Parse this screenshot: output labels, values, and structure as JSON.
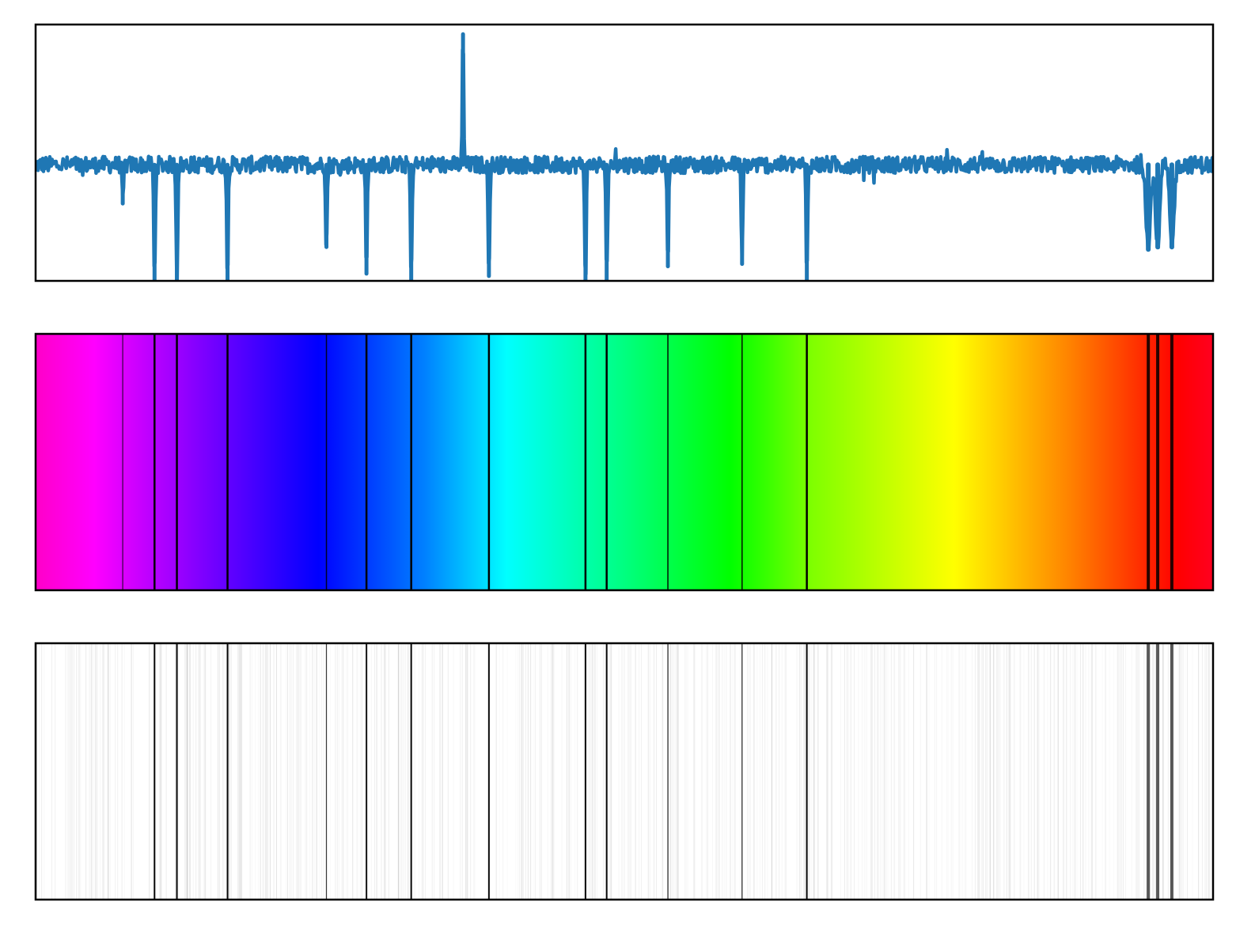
{
  "colors": {
    "line": "#1f77b4",
    "frame": "#000000",
    "background": "#ffffff",
    "rainbow": [
      "#ff00c8",
      "#ff00ff",
      "#8000ff",
      "#0000ff",
      "#0080ff",
      "#00ffff",
      "#00ff80",
      "#00ff00",
      "#80ff00",
      "#ffff00",
      "#ff8000",
      "#ff0000",
      "#ff0020"
    ]
  },
  "chart_data": [
    {
      "type": "line",
      "title": "",
      "xlabel": "",
      "ylabel": "",
      "xlim": [
        0,
        1
      ],
      "ylim": [
        0,
        1.06
      ],
      "grid": false,
      "baseline": 0.48,
      "spike": {
        "x": 0.363,
        "y": 1.02
      },
      "absorption_lines": [
        {
          "x": 0.074,
          "depth": 0.16
        },
        {
          "x": 0.101,
          "depth": 0.48
        },
        {
          "x": 0.12,
          "depth": 0.48
        },
        {
          "x": 0.163,
          "depth": 0.48
        },
        {
          "x": 0.247,
          "depth": 0.34
        },
        {
          "x": 0.281,
          "depth": 0.45
        },
        {
          "x": 0.319,
          "depth": 0.48
        },
        {
          "x": 0.385,
          "depth": 0.46
        },
        {
          "x": 0.467,
          "depth": 0.48
        },
        {
          "x": 0.485,
          "depth": 0.48
        },
        {
          "x": 0.537,
          "depth": 0.42
        },
        {
          "x": 0.6,
          "depth": 0.41
        },
        {
          "x": 0.655,
          "depth": 0.48
        },
        {
          "x": 0.945,
          "depth": 0.35
        },
        {
          "x": 0.953,
          "depth": 0.34
        },
        {
          "x": 0.965,
          "depth": 0.34
        }
      ]
    },
    {
      "type": "heatmap",
      "title": "",
      "description_colormap": "rainbow",
      "lines_ref": 0
    },
    {
      "type": "heatmap",
      "title": "",
      "description_colormap": "grayscale",
      "lines_ref": 0
    }
  ]
}
